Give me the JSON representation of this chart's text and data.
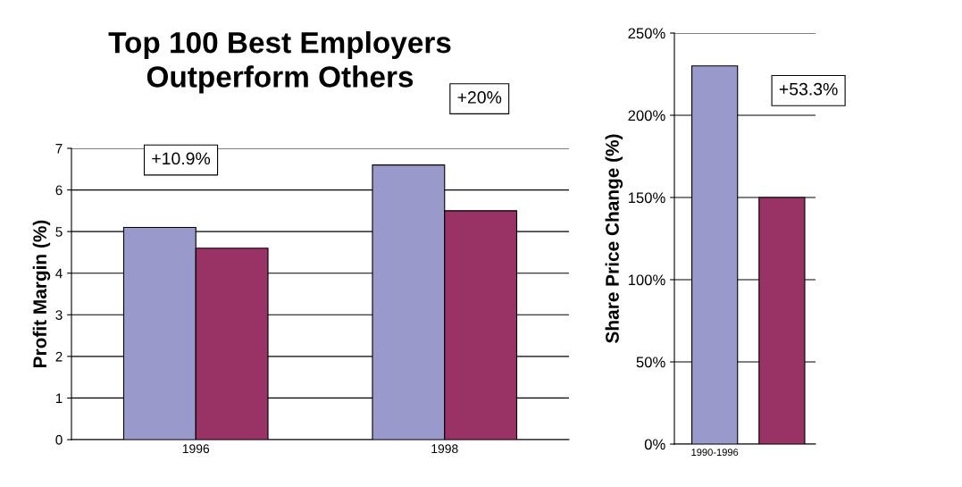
{
  "chart_data": [
    {
      "type": "bar",
      "title": "Top 100 Best Employers\nOutperform Others",
      "ylabel": "Profit Margin (%)",
      "categories": [
        "1996",
        "1998"
      ],
      "series": [
        {
          "color": "#9999cc",
          "values": [
            5.1,
            6.6
          ]
        },
        {
          "color": "#993366",
          "values": [
            4.6,
            5.5
          ]
        }
      ],
      "ylim": [
        0,
        7
      ],
      "yticks": [
        0,
        1,
        2,
        3,
        4,
        5,
        6,
        7
      ],
      "grid": "y",
      "legend": false,
      "annotations": [
        "+10.9%",
        "+20%"
      ]
    },
    {
      "type": "bar",
      "ylabel": "Share Price Change (%)",
      "categories": [
        "1990-1996",
        null
      ],
      "series": [
        {
          "colors": [
            "#9999cc",
            "#993366"
          ],
          "values": [
            230,
            150
          ]
        }
      ],
      "ylim": [
        0,
        250
      ],
      "yticks": [
        {
          "value": 0,
          "label": "0%"
        },
        {
          "value": 50,
          "label": "50%"
        },
        {
          "value": 100,
          "label": "100%"
        },
        {
          "value": 150,
          "label": "150%"
        },
        {
          "value": 200,
          "label": "200%"
        },
        {
          "value": 250,
          "label": "250%"
        }
      ],
      "grid": "y",
      "legend": false,
      "annotations": [
        "+53.3%"
      ]
    }
  ]
}
